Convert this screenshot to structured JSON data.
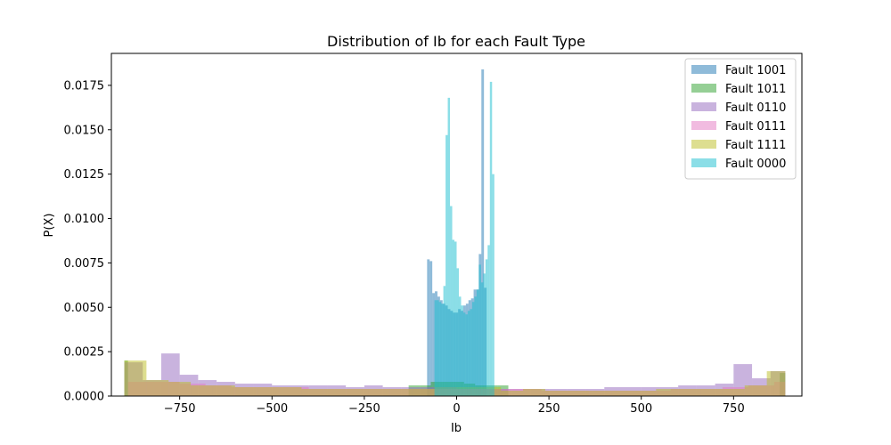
{
  "chart_data": {
    "type": "histogram",
    "title": "Distribution of Ib for each Fault Type",
    "xlabel": "Ib",
    "ylabel": "P(X)",
    "xlim": [
      -935,
      935
    ],
    "ylim": [
      0,
      0.0193
    ],
    "xticks": [
      -750,
      -500,
      -250,
      0,
      250,
      500,
      750
    ],
    "xtick_labels": [
      "−750",
      "−500",
      "−250",
      "0",
      "250",
      "500",
      "750"
    ],
    "yticks": [
      0.0,
      0.0025,
      0.005,
      0.0075,
      0.01,
      0.0125,
      0.015,
      0.0175
    ],
    "ytick_labels": [
      "0.0000",
      "0.0025",
      "0.0050",
      "0.0075",
      "0.0100",
      "0.0125",
      "0.0150",
      "0.0175"
    ],
    "grid": false,
    "legend_position": "top-right",
    "alpha": 0.5,
    "series": [
      {
        "name": "Fault 1001",
        "color": "#1f77b4",
        "bins": [
          [
            -80,
            -73,
            0.0077
          ],
          [
            -73,
            -66,
            0.0076
          ],
          [
            -66,
            -59,
            0.0058
          ],
          [
            -59,
            -52,
            0.0059
          ],
          [
            -52,
            -45,
            0.0056
          ],
          [
            -45,
            -38,
            0.0054
          ],
          [
            -38,
            -31,
            0.0052
          ],
          [
            -31,
            -24,
            0.0051
          ],
          [
            -24,
            -17,
            0.0049
          ],
          [
            -17,
            -10,
            0.0048
          ],
          [
            -10,
            -3,
            0.0047
          ],
          [
            -3,
            4,
            0.0047
          ],
          [
            4,
            11,
            0.0049
          ],
          [
            11,
            18,
            0.0048
          ],
          [
            18,
            25,
            0.0051
          ],
          [
            25,
            32,
            0.0052
          ],
          [
            32,
            39,
            0.0054
          ],
          [
            39,
            46,
            0.0055
          ],
          [
            46,
            53,
            0.006
          ],
          [
            53,
            60,
            0.006
          ],
          [
            60,
            67,
            0.008
          ],
          [
            67,
            74,
            0.0184
          ],
          [
            74,
            81,
            0.0061
          ]
        ]
      },
      {
        "name": "Fault 1011",
        "color": "#2ca02c",
        "bins": [
          [
            -900,
            -890,
            0.002
          ],
          [
            -130,
            -100,
            0.0006
          ],
          [
            -100,
            -70,
            0.0006
          ],
          [
            -70,
            -40,
            0.0008
          ],
          [
            -40,
            -10,
            0.0008
          ],
          [
            -10,
            20,
            0.0008
          ],
          [
            20,
            50,
            0.0007
          ],
          [
            50,
            80,
            0.0006
          ],
          [
            80,
            110,
            0.0006
          ],
          [
            110,
            140,
            0.0006
          ],
          [
            875,
            890,
            0.0013
          ]
        ]
      },
      {
        "name": "Fault 0110",
        "color": "#9467bd",
        "bins": [
          [
            -900,
            -850,
            0.0019
          ],
          [
            -850,
            -800,
            0.0009
          ],
          [
            -800,
            -750,
            0.0024
          ],
          [
            -750,
            -700,
            0.0012
          ],
          [
            -700,
            -650,
            0.0009
          ],
          [
            -650,
            -600,
            0.0008
          ],
          [
            -600,
            -550,
            0.0007
          ],
          [
            -550,
            -500,
            0.0007
          ],
          [
            -500,
            -450,
            0.0006
          ],
          [
            -450,
            -400,
            0.0006
          ],
          [
            -400,
            -350,
            0.0006
          ],
          [
            -350,
            -300,
            0.0006
          ],
          [
            -300,
            -250,
            0.0005
          ],
          [
            -250,
            -200,
            0.0006
          ],
          [
            -200,
            -150,
            0.0005
          ],
          [
            -150,
            -100,
            0.0005
          ],
          [
            -100,
            -50,
            0.0005
          ],
          [
            -50,
            0,
            0.0005
          ],
          [
            0,
            50,
            0.0004
          ],
          [
            50,
            100,
            0.0004
          ],
          [
            100,
            150,
            0.0004
          ],
          [
            150,
            200,
            0.0004
          ],
          [
            200,
            250,
            0.0004
          ],
          [
            250,
            300,
            0.0004
          ],
          [
            300,
            350,
            0.0004
          ],
          [
            350,
            400,
            0.0004
          ],
          [
            400,
            450,
            0.0005
          ],
          [
            450,
            500,
            0.0005
          ],
          [
            500,
            550,
            0.0005
          ],
          [
            550,
            600,
            0.0005
          ],
          [
            600,
            650,
            0.0006
          ],
          [
            650,
            700,
            0.0006
          ],
          [
            700,
            750,
            0.0007
          ],
          [
            750,
            800,
            0.0018
          ],
          [
            800,
            850,
            0.001
          ],
          [
            850,
            890,
            0.0014
          ]
        ]
      },
      {
        "name": "Fault 0111",
        "color": "#e377c2",
        "bins": [
          [
            -890,
            -820,
            0.0008
          ],
          [
            -820,
            -750,
            0.0008
          ],
          [
            -750,
            -680,
            0.0007
          ],
          [
            -680,
            -610,
            0.0006
          ],
          [
            -610,
            -540,
            0.0005
          ],
          [
            -540,
            -470,
            0.0005
          ],
          [
            -470,
            -400,
            0.0005
          ],
          [
            -400,
            -330,
            0.0004
          ],
          [
            -330,
            -260,
            0.0004
          ],
          [
            -260,
            -190,
            0.0004
          ],
          [
            -190,
            -120,
            0.0004
          ],
          [
            -120,
            -50,
            0.0004
          ],
          [
            -50,
            20,
            0.0004
          ],
          [
            20,
            90,
            0.0004
          ],
          [
            90,
            160,
            0.0004
          ],
          [
            160,
            230,
            0.0004
          ],
          [
            230,
            300,
            0.0003
          ],
          [
            300,
            370,
            0.0003
          ],
          [
            370,
            440,
            0.0003
          ],
          [
            440,
            510,
            0.0003
          ],
          [
            510,
            580,
            0.0003
          ],
          [
            580,
            650,
            0.0004
          ],
          [
            650,
            720,
            0.0004
          ],
          [
            720,
            790,
            0.0005
          ],
          [
            790,
            860,
            0.0006
          ],
          [
            860,
            890,
            0.0008
          ]
        ]
      },
      {
        "name": "Fault 1111",
        "color": "#bcbd22",
        "bins": [
          [
            -900,
            -840,
            0.002
          ],
          [
            -840,
            -780,
            0.0009
          ],
          [
            -780,
            -720,
            0.0008
          ],
          [
            -720,
            -660,
            0.0006
          ],
          [
            -660,
            -600,
            0.0006
          ],
          [
            -600,
            -540,
            0.0005
          ],
          [
            -540,
            -480,
            0.0005
          ],
          [
            -480,
            -420,
            0.0005
          ],
          [
            -420,
            -360,
            0.0004
          ],
          [
            -360,
            -300,
            0.0004
          ],
          [
            -300,
            -240,
            0.0004
          ],
          [
            -240,
            -180,
            0.0004
          ],
          [
            -180,
            -120,
            0.0004
          ],
          [
            -120,
            -60,
            0.0004
          ],
          [
            -60,
            0,
            0.0005
          ],
          [
            0,
            60,
            0.0005
          ],
          [
            60,
            120,
            0.0005
          ],
          [
            120,
            180,
            0.0003
          ],
          [
            180,
            240,
            0.0004
          ],
          [
            240,
            300,
            0.0003
          ],
          [
            300,
            360,
            0.0003
          ],
          [
            360,
            420,
            0.0003
          ],
          [
            420,
            480,
            0.0003
          ],
          [
            480,
            540,
            0.0003
          ],
          [
            540,
            600,
            0.0004
          ],
          [
            600,
            660,
            0.0004
          ],
          [
            660,
            720,
            0.0004
          ],
          [
            720,
            780,
            0.0004
          ],
          [
            780,
            840,
            0.0006
          ],
          [
            840,
            890,
            0.0014
          ]
        ]
      },
      {
        "name": "Fault 0000",
        "color": "#17becf",
        "bins": [
          [
            -60,
            -54,
            0.0054
          ],
          [
            -54,
            -48,
            0.0054
          ],
          [
            -48,
            -42,
            0.0053
          ],
          [
            -42,
            -36,
            0.0052
          ],
          [
            -36,
            -30,
            0.0062
          ],
          [
            -30,
            -24,
            0.0147
          ],
          [
            -24,
            -18,
            0.0168
          ],
          [
            -18,
            -12,
            0.0107
          ],
          [
            -12,
            -6,
            0.0088
          ],
          [
            -6,
            0,
            0.0087
          ],
          [
            0,
            6,
            0.0072
          ],
          [
            6,
            12,
            0.0056
          ],
          [
            12,
            18,
            0.0051
          ],
          [
            18,
            24,
            0.0047
          ],
          [
            24,
            30,
            0.0046
          ],
          [
            30,
            36,
            0.0048
          ],
          [
            36,
            42,
            0.0049
          ],
          [
            42,
            48,
            0.0053
          ],
          [
            48,
            54,
            0.0056
          ],
          [
            54,
            60,
            0.006
          ],
          [
            60,
            66,
            0.0074
          ],
          [
            66,
            72,
            0.0064
          ],
          [
            72,
            78,
            0.0069
          ],
          [
            78,
            84,
            0.0077
          ],
          [
            84,
            90,
            0.0085
          ],
          [
            90,
            96,
            0.0177
          ],
          [
            96,
            102,
            0.0125
          ]
        ]
      }
    ]
  }
}
